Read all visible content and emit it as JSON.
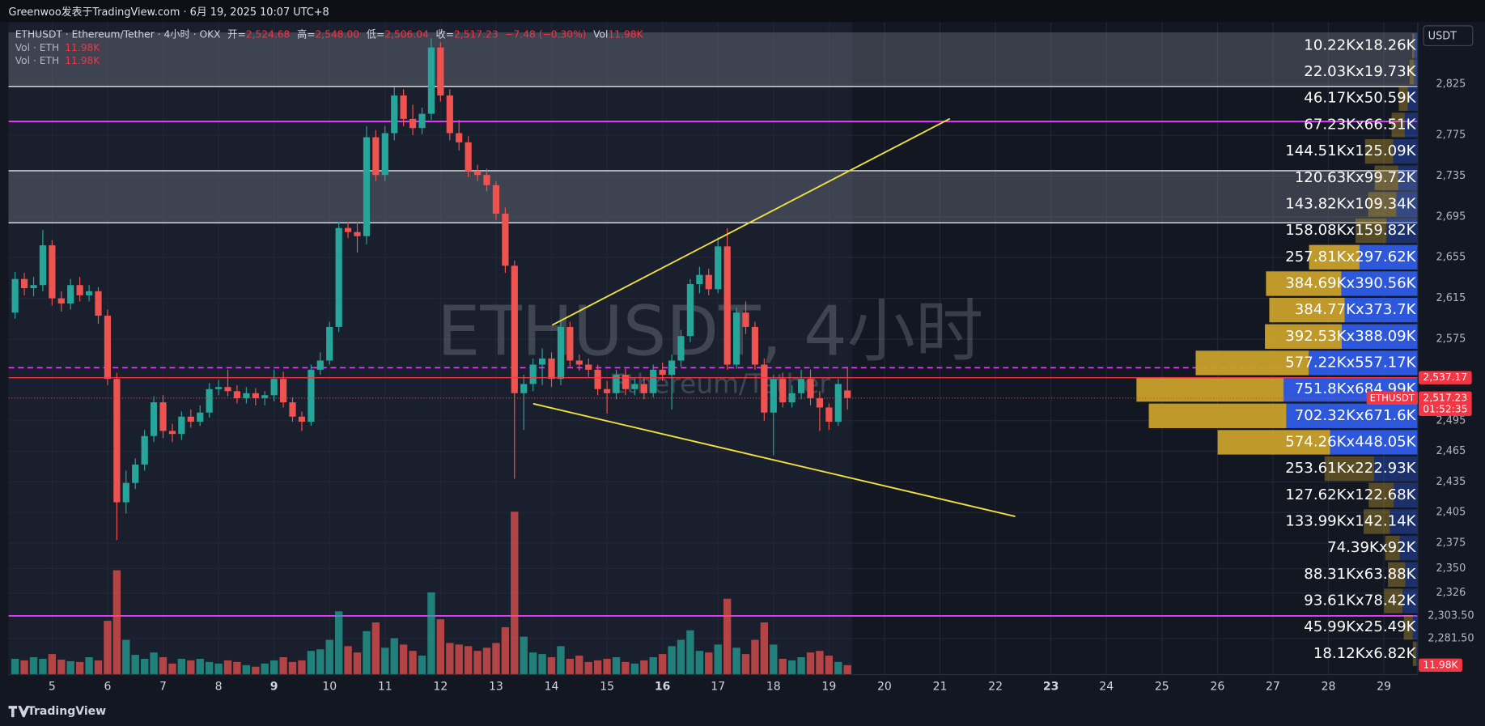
{
  "header": {
    "publisher": "Greenwoo发表于TradingView.com · 6月 19, 2025 10:07 UTC+8"
  },
  "footer": {
    "brand": "TradingView"
  },
  "chart_data": {
    "type": "candlestick",
    "title": "ETHUSDT · Ethereum/Tether · 4小时 · OKX",
    "legend": {
      "o_key": "开=",
      "o": "2,524.68",
      "h_key": "高=",
      "h": "2,548.00",
      "l_key": "低=",
      "l": "2,506.04",
      "c_key": "收=",
      "c": "2,517.23",
      "change": "−7.48 (−0.30%)",
      "vol_key": "Vol",
      "vol": "11.98K"
    },
    "volume_legends": [
      {
        "name": "Vol · ETH",
        "value": "11.98K"
      },
      {
        "name": "Vol · ETH",
        "value": "11.98K"
      }
    ],
    "watermark": "ETHUSDT, 4小时",
    "watermark_sub": "Ethereum/Tether",
    "currency": "USDT",
    "up_color": "#26a69a",
    "down_color": "#ef5350",
    "x": [
      4.333,
      4.5,
      4.667,
      4.833,
      5,
      5.167,
      5.333,
      5.5,
      5.667,
      5.833,
      6,
      6.167,
      6.333,
      6.5,
      6.667,
      6.833,
      7,
      7.167,
      7.333,
      7.5,
      7.667,
      7.833,
      8,
      8.167,
      8.333,
      8.5,
      8.667,
      8.833,
      9,
      9.167,
      9.333,
      9.5,
      9.667,
      9.833,
      10,
      10.167,
      10.333,
      10.5,
      10.667,
      10.833,
      11,
      11.167,
      11.333,
      11.5,
      11.667,
      11.833,
      12,
      12.167,
      12.333,
      12.5,
      12.667,
      12.833,
      13,
      13.167,
      13.333,
      13.5,
      13.667,
      13.833,
      14,
      14.167,
      14.333,
      14.5,
      14.667,
      14.833,
      15,
      15.167,
      15.333,
      15.5,
      15.667,
      15.833,
      16,
      16.167,
      16.333,
      16.5,
      16.667,
      16.833,
      17,
      17.167,
      17.333,
      17.5,
      17.667,
      17.833,
      18,
      18.167,
      18.333,
      18.5,
      18.667,
      18.833,
      19,
      19.167,
      19.333
    ],
    "open": [
      2601,
      2634,
      2625,
      2628,
      2667,
      2615,
      2610,
      2628,
      2618,
      2622,
      2598,
      2536,
      2415,
      2434,
      2452,
      2480,
      2513,
      2485,
      2482,
      2499,
      2494,
      2503,
      2526,
      2528,
      2524,
      2517,
      2522,
      2517,
      2520,
      2536,
      2513,
      2499,
      2494,
      2545,
      2554,
      2587,
      2684,
      2680,
      2676,
      2773,
      2736,
      2777,
      2814,
      2791,
      2782,
      2796,
      2861,
      2814,
      2777,
      2768,
      2740,
      2736,
      2726,
      2698,
      2647,
      2522,
      2531,
      2550,
      2556,
      2536,
      2587,
      2554,
      2550,
      2545,
      2526,
      2522,
      2540,
      2526,
      2531,
      2522,
      2545,
      2540,
      2554,
      2578,
      2629,
      2638,
      2624,
      2666,
      2550,
      2601,
      2587,
      2550,
      2503,
      2536,
      2513,
      2522,
      2536,
      2517,
      2508,
      2494,
      2524.68
    ],
    "high": [
      2641,
      2640,
      2636,
      2682,
      2672,
      2622,
      2634,
      2636,
      2628,
      2626,
      2604,
      2542,
      2446,
      2458,
      2486,
      2519,
      2520,
      2492,
      2504,
      2506,
      2510,
      2532,
      2535,
      2545,
      2530,
      2528,
      2527,
      2524,
      2545,
      2543,
      2518,
      2504,
      2550,
      2562,
      2592,
      2690,
      2690,
      2690,
      2784,
      2780,
      2784,
      2822,
      2820,
      2805,
      2802,
      2870,
      2866,
      2820,
      2790,
      2774,
      2746,
      2742,
      2730,
      2704,
      2652,
      2540,
      2556,
      2566,
      2562,
      2592,
      2592,
      2560,
      2556,
      2550,
      2534,
      2545,
      2546,
      2536,
      2538,
      2550,
      2552,
      2560,
      2584,
      2634,
      2646,
      2644,
      2675,
      2684,
      2606,
      2612,
      2592,
      2556,
      2540,
      2542,
      2530,
      2545,
      2545,
      2524,
      2512,
      2536,
      2548
    ],
    "low": [
      2595,
      2618,
      2617,
      2622,
      2608,
      2602,
      2604,
      2612,
      2612,
      2590,
      2530,
      2378,
      2404,
      2428,
      2446,
      2474,
      2478,
      2474,
      2476,
      2488,
      2490,
      2498,
      2520,
      2519,
      2512,
      2512,
      2510,
      2510,
      2514,
      2508,
      2494,
      2485,
      2490,
      2540,
      2550,
      2582,
      2674,
      2660,
      2668,
      2730,
      2730,
      2770,
      2784,
      2775,
      2776,
      2790,
      2808,
      2770,
      2760,
      2734,
      2730,
      2720,
      2692,
      2640,
      2438,
      2486,
      2524,
      2530,
      2528,
      2530,
      2548,
      2544,
      2538,
      2520,
      2502,
      2516,
      2520,
      2520,
      2516,
      2518,
      2534,
      2506,
      2548,
      2572,
      2620,
      2618,
      2620,
      2545,
      2546,
      2580,
      2545,
      2495,
      2461,
      2508,
      2508,
      2516,
      2510,
      2485,
      2486,
      2490,
      2506.04
    ],
    "close": [
      2634,
      2625,
      2628,
      2667,
      2615,
      2610,
      2628,
      2618,
      2622,
      2598,
      2536,
      2415,
      2434,
      2452,
      2480,
      2513,
      2485,
      2482,
      2499,
      2494,
      2503,
      2526,
      2528,
      2524,
      2517,
      2522,
      2517,
      2520,
      2536,
      2513,
      2499,
      2494,
      2545,
      2554,
      2587,
      2684,
      2680,
      2676,
      2773,
      2736,
      2777,
      2814,
      2791,
      2782,
      2796,
      2861,
      2814,
      2777,
      2768,
      2740,
      2736,
      2726,
      2698,
      2647,
      2522,
      2531,
      2550,
      2556,
      2536,
      2587,
      2554,
      2550,
      2545,
      2526,
      2522,
      2540,
      2526,
      2531,
      2522,
      2545,
      2540,
      2554,
      2578,
      2629,
      2638,
      2624,
      2666,
      2550,
      2601,
      2587,
      2550,
      2503,
      2536,
      2513,
      2522,
      2536,
      2517,
      2508,
      2494,
      2531,
      2517.23
    ],
    "volume": [
      20,
      18,
      22,
      20,
      26,
      19,
      17,
      16,
      22,
      18,
      68,
      132,
      44,
      25,
      20,
      28,
      22,
      14,
      20,
      18,
      20,
      16,
      14,
      18,
      16,
      12,
      10,
      14,
      18,
      22,
      16,
      18,
      30,
      32,
      44,
      80,
      36,
      28,
      55,
      66,
      34,
      46,
      38,
      30,
      24,
      104,
      70,
      40,
      38,
      36,
      30,
      34,
      40,
      60,
      206,
      48,
      28,
      26,
      22,
      36,
      20,
      24,
      16,
      18,
      20,
      22,
      16,
      14,
      18,
      22,
      26,
      36,
      44,
      56,
      30,
      28,
      38,
      96,
      34,
      26,
      44,
      66,
      38,
      20,
      18,
      22,
      28,
      30,
      24,
      16,
      11.98
    ],
    "volume_label": "11.98K",
    "xlim": [
      4.215,
      29.61
    ],
    "xticks": [
      5,
      6,
      7,
      8,
      9,
      10,
      11,
      12,
      13,
      14,
      15,
      16,
      17,
      18,
      19,
      20,
      21,
      22,
      23,
      24,
      25,
      26,
      27,
      28,
      29
    ],
    "bold_xticks": [
      9,
      16,
      23
    ],
    "ylim": [
      2246,
      2886
    ],
    "yticks": [
      {
        "value": 2825,
        "label": "2,825"
      },
      {
        "value": 2775,
        "label": "2,775"
      },
      {
        "value": 2735,
        "label": "2,735"
      },
      {
        "value": 2695,
        "label": "2,695"
      },
      {
        "value": 2655,
        "label": "2,655"
      },
      {
        "value": 2615,
        "label": "2,615"
      },
      {
        "value": 2575,
        "label": "2,575"
      },
      {
        "value": 2495,
        "label": "2,495"
      },
      {
        "value": 2465,
        "label": "2,465"
      },
      {
        "value": 2435,
        "label": "2,435"
      },
      {
        "value": 2405,
        "label": "2,405"
      },
      {
        "value": 2375,
        "label": "2,375"
      },
      {
        "value": 2350,
        "label": "2,350"
      },
      {
        "value": 2326,
        "label": "2,326"
      },
      {
        "value": 2303.5,
        "label": "2,303.50"
      },
      {
        "value": 2281.5,
        "label": "2,281.50"
      }
    ],
    "grid": true,
    "price_alert": {
      "value": 2537.17,
      "label": "2,537.17"
    },
    "last_price": {
      "symbol": "ETHUSDT",
      "value": 2517.23,
      "label": "2,517.23",
      "countdown": "01:52:35"
    },
    "volume_profile": {
      "up_color": "#c9a02c",
      "down_color": "#2e5ce6",
      "rows": [
        {
          "label": "10.22Kx18.26K",
          "up": 10.22,
          "down": 18.26
        },
        {
          "label": "22.03Kx19.73K",
          "up": 22.03,
          "down": 19.73
        },
        {
          "label": "46.17Kx50.59K",
          "up": 46.17,
          "down": 50.59
        },
        {
          "label": "67.23Kx66.51K",
          "up": 67.23,
          "down": 66.51
        },
        {
          "label": "144.51Kx125.09K",
          "up": 144.51,
          "down": 125.09
        },
        {
          "label": "120.63Kx99.72K",
          "up": 120.63,
          "down": 99.72
        },
        {
          "label": "143.82Kx109.34K",
          "up": 143.82,
          "down": 109.34
        },
        {
          "label": "158.08Kx159.82K",
          "up": 158.08,
          "down": 159.82
        },
        {
          "label": "257.81Kx297.62K",
          "up": 257.81,
          "down": 297.62
        },
        {
          "label": "384.69Kx390.56K",
          "up": 384.69,
          "down": 390.56
        },
        {
          "label": "384.77Kx373.7K",
          "up": 384.77,
          "down": 373.7
        },
        {
          "label": "392.53Kx388.09K",
          "up": 392.53,
          "down": 388.09
        },
        {
          "label": "577.22Kx557.17K",
          "up": 577.22,
          "down": 557.17
        },
        {
          "label": "751.8Kx684.99K",
          "up": 751.8,
          "down": 684.99
        },
        {
          "label": "702.32Kx671.6K",
          "up": 702.32,
          "down": 671.6
        },
        {
          "label": "574.26Kx448.05K",
          "up": 574.26,
          "down": 448.05
        },
        {
          "label": "253.61Kx222.93K",
          "up": 253.61,
          "down": 222.93
        },
        {
          "label": "127.62Kx122.68K",
          "up": 127.62,
          "down": 122.68
        },
        {
          "label": "133.99Kx142.14K",
          "up": 133.99,
          "down": 142.14
        },
        {
          "label": "74.39Kx92K",
          "up": 74.39,
          "down": 92
        },
        {
          "label": "88.31Kx63.88K",
          "up": 88.31,
          "down": 63.88
        },
        {
          "label": "93.61Kx78.42K",
          "up": 93.61,
          "down": 78.42
        },
        {
          "label": "45.99Kx25.49K",
          "up": 45.99,
          "down": 25.49
        },
        {
          "label": "18.12Kx6.82K",
          "up": 18.12,
          "down": 6.82
        }
      ]
    }
  }
}
